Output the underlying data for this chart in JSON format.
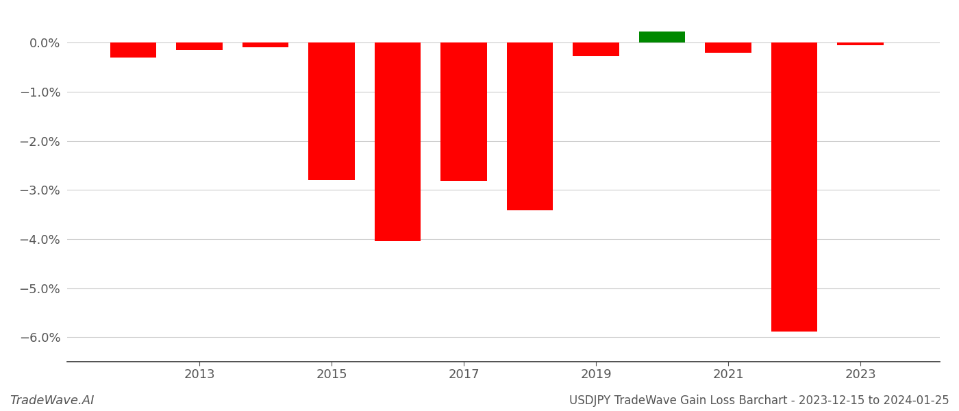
{
  "years": [
    2012,
    2013,
    2014,
    2015,
    2016,
    2017,
    2018,
    2019,
    2020,
    2021,
    2022,
    2023
  ],
  "values": [
    -0.3,
    -0.15,
    -0.1,
    -2.8,
    -4.05,
    -2.82,
    -3.42,
    -0.28,
    0.22,
    -0.2,
    -5.88,
    -0.05
  ],
  "colors": [
    "#ff0000",
    "#ff0000",
    "#ff0000",
    "#ff0000",
    "#ff0000",
    "#ff0000",
    "#ff0000",
    "#ff0000",
    "#008800",
    "#ff0000",
    "#ff0000",
    "#ff0000"
  ],
  "ylim": [
    -6.5,
    0.45
  ],
  "yticks": [
    0.0,
    -1.0,
    -2.0,
    -3.0,
    -4.0,
    -5.0,
    -6.0
  ],
  "ytick_labels": [
    "0.0%",
    "−1.0%",
    "−2.0%",
    "−3.0%",
    "−4.0%",
    "−5.0%",
    "−6.0%"
  ],
  "xticks": [
    2013,
    2015,
    2017,
    2019,
    2021,
    2023
  ],
  "xlim": [
    2011.0,
    2024.2
  ],
  "title": "USDJPY TradeWave Gain Loss Barchart - 2023-12-15 to 2024-01-25",
  "watermark": "TradeWave.AI",
  "bar_width": 0.7,
  "background_color": "#ffffff",
  "grid_color": "#cccccc",
  "text_color": "#555555",
  "title_color": "#555555",
  "axis_label_fontsize": 13,
  "title_fontsize": 12,
  "watermark_fontsize": 13
}
